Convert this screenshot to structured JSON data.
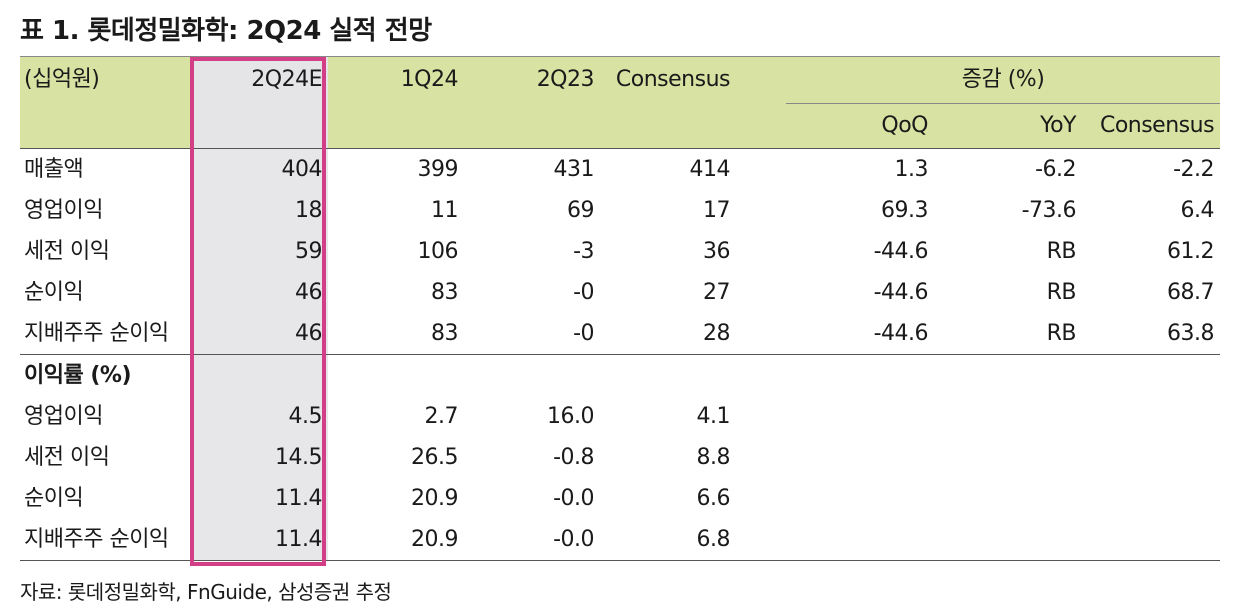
{
  "title": "표 1.  롯데정밀화학: 2Q24 실적 전망",
  "header": {
    "unit": "(십억원)",
    "columns": [
      "2Q24E",
      "1Q24",
      "2Q23",
      "Consensus"
    ],
    "change_group": "증감 (%)",
    "change_columns": [
      "QoQ",
      "YoY",
      "Consensus"
    ]
  },
  "rows": [
    {
      "label": "매출액",
      "values": [
        "404",
        "399",
        "431",
        "414"
      ],
      "changes": [
        "1.3",
        "-6.2",
        "-2.2"
      ]
    },
    {
      "label": "영업이익",
      "values": [
        "18",
        "11",
        "69",
        "17"
      ],
      "changes": [
        "69.3",
        "-73.6",
        "6.4"
      ]
    },
    {
      "label": "세전 이익",
      "values": [
        "59",
        "106",
        "-3",
        "36"
      ],
      "changes": [
        "-44.6",
        "RB",
        "61.2"
      ]
    },
    {
      "label": "순이익",
      "values": [
        "46",
        "83",
        "-0",
        "27"
      ],
      "changes": [
        "-44.6",
        "RB",
        "68.7"
      ]
    },
    {
      "label": "지배주주 순이익",
      "values": [
        "46",
        "83",
        "-0",
        "28"
      ],
      "changes": [
        "-44.6",
        "RB",
        "63.8"
      ]
    }
  ],
  "margin_section": {
    "title": "이익률 (%)",
    "rows": [
      {
        "label": "영업이익",
        "values": [
          "4.5",
          "2.7",
          "16.0",
          "4.1"
        ]
      },
      {
        "label": "세전 이익",
        "values": [
          "14.5",
          "26.5",
          "-0.8",
          "8.8"
        ]
      },
      {
        "label": "순이익",
        "values": [
          "11.4",
          "20.9",
          "-0.0",
          "6.6"
        ]
      },
      {
        "label": "지배주주 순이익",
        "values": [
          "11.4",
          "20.9",
          "-0.0",
          "6.8"
        ]
      }
    ]
  },
  "source": "자료: 롯데정밀화학, FnGuide, 삼성증권 추정",
  "colors": {
    "header_bg": "#d8e2a3",
    "highlight_bg": "#e7e7ea",
    "highlight_border": "#d23f86"
  }
}
